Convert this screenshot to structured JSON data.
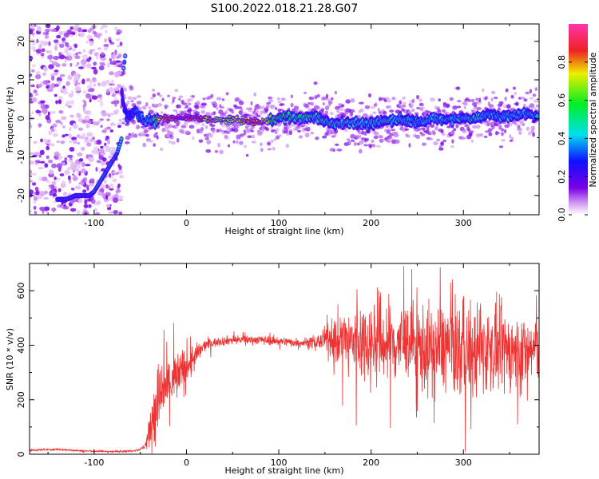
{
  "title": "S100.2022.018.21.28.G07",
  "colors": {
    "snr_line": "#ee3333",
    "frame": "#000000"
  },
  "chart_data": [
    {
      "type": "heatmap",
      "xlabel": "Height of straight line (km)",
      "ylabel": "Frequency (Hz)",
      "xlim": [
        -170,
        382
      ],
      "ylim": [
        -25,
        24.5
      ],
      "xticks": [
        -100,
        0,
        100,
        200,
        300
      ],
      "yticks": [
        -20,
        -10,
        0,
        10,
        20
      ],
      "colorbar": {
        "label": "Normalized spectral amplitude",
        "range": [
          0,
          1
        ],
        "ticks": [
          "0.0",
          "0.2",
          "0.4",
          "0.6",
          "0.8"
        ],
        "colormap": "rainbow (purple-blue-cyan-green-yellow-red)"
      },
      "ridge": {
        "x": [
          -70,
          -67,
          -64,
          -60,
          -55,
          -50,
          -45,
          -40,
          -35,
          -30,
          -20,
          -10,
          0,
          10,
          20,
          30,
          40,
          50,
          60,
          70,
          80,
          90,
          100,
          110,
          120,
          130,
          140,
          150,
          160,
          170,
          180,
          190,
          200,
          210,
          220,
          230,
          240,
          250,
          260,
          270,
          280,
          290,
          300,
          310,
          320,
          330,
          340,
          350,
          360,
          370,
          380
        ],
        "y": [
          6,
          2,
          0,
          1,
          2,
          0,
          -1,
          0,
          -1,
          0,
          0,
          0,
          0,
          0,
          0,
          -0.5,
          -0.5,
          -0.5,
          -0.5,
          -1,
          -1,
          -0.5,
          0,
          0.5,
          0,
          0,
          0.5,
          -0.5,
          -1.5,
          -1,
          -1,
          -1.5,
          -1.5,
          -1,
          -0.5,
          0,
          -0.5,
          -1,
          -0.5,
          0,
          -0.5,
          0,
          0,
          0,
          0.5,
          1,
          0.5,
          0.5,
          1,
          1,
          1
        ]
      },
      "amplitude": [
        0.2,
        0.25,
        0.3,
        0.3,
        0.35,
        0.35,
        0.4,
        0.4,
        0.5,
        0.7,
        0.9,
        1.0,
        1.0,
        0.95,
        0.8,
        0.7,
        0.7,
        0.7,
        0.75,
        0.85,
        0.9,
        0.6,
        0.55,
        0.5,
        0.5,
        0.5,
        0.45,
        0.45,
        0.45,
        0.45,
        0.45,
        0.45,
        0.45,
        0.45,
        0.45,
        0.45,
        0.4,
        0.4,
        0.4,
        0.4,
        0.4,
        0.4,
        0.4,
        0.45,
        0.4,
        0.4,
        0.4,
        0.4,
        0.4,
        0.4,
        0.4
      ],
      "descending_branch": {
        "x": [
          -70,
          -75,
          -80,
          -85,
          -90,
          -95,
          -100,
          -105,
          -110,
          -115,
          -120,
          -130,
          -140
        ],
        "y": [
          -5,
          -9,
          -11,
          -13,
          -15,
          -17,
          -19,
          -20,
          -20,
          -20,
          -20,
          -21,
          -21
        ]
      },
      "upper_branch": {
        "x": [
          -68,
          -67,
          -66
        ],
        "y": [
          13,
          15,
          17
        ]
      },
      "noise_region_xlim": [
        -170,
        -70
      ]
    },
    {
      "type": "line",
      "xlabel": "Height of straight line (km)",
      "ylabel": "SNR (10 * v/v)",
      "xlim": [
        -170,
        382
      ],
      "ylim": [
        0,
        700
      ],
      "xticks": [
        -100,
        0,
        100,
        200,
        300
      ],
      "yticks": [
        0,
        200,
        400,
        600
      ],
      "series": [
        {
          "x": [
            -170,
            -140,
            -110,
            -80,
            -60,
            -50,
            -45,
            -40,
            -38,
            -35,
            -30,
            -25,
            -20,
            -15,
            -10,
            -5,
            0,
            5,
            10,
            15,
            20,
            30,
            50,
            80,
            100,
            120,
            140,
            150,
            160,
            170,
            180,
            190,
            200,
            210,
            220,
            230,
            240,
            250,
            260,
            270,
            280,
            290,
            300,
            310,
            320,
            330,
            340,
            350,
            360,
            370,
            380
          ],
          "y": [
            15,
            18,
            12,
            10,
            12,
            18,
            30,
            80,
            120,
            170,
            200,
            230,
            250,
            270,
            280,
            300,
            320,
            340,
            360,
            380,
            400,
            410,
            420,
            420,
            415,
            410,
            410,
            420,
            425,
            420,
            410,
            420,
            410,
            420,
            400,
            410,
            420,
            400,
            380,
            380,
            400,
            390,
            380,
            370,
            380,
            390,
            380,
            380,
            370,
            380,
            390
          ],
          "spread": [
            3,
            3,
            3,
            3,
            3,
            3,
            10,
            60,
            100,
            130,
            120,
            120,
            110,
            100,
            90,
            80,
            70,
            60,
            40,
            30,
            20,
            15,
            15,
            15,
            15,
            15,
            20,
            40,
            80,
            100,
            120,
            130,
            140,
            150,
            150,
            140,
            120,
            140,
            150,
            150,
            150,
            160,
            160,
            160,
            150,
            140,
            140,
            130,
            130,
            120,
            120
          ]
        }
      ]
    }
  ]
}
